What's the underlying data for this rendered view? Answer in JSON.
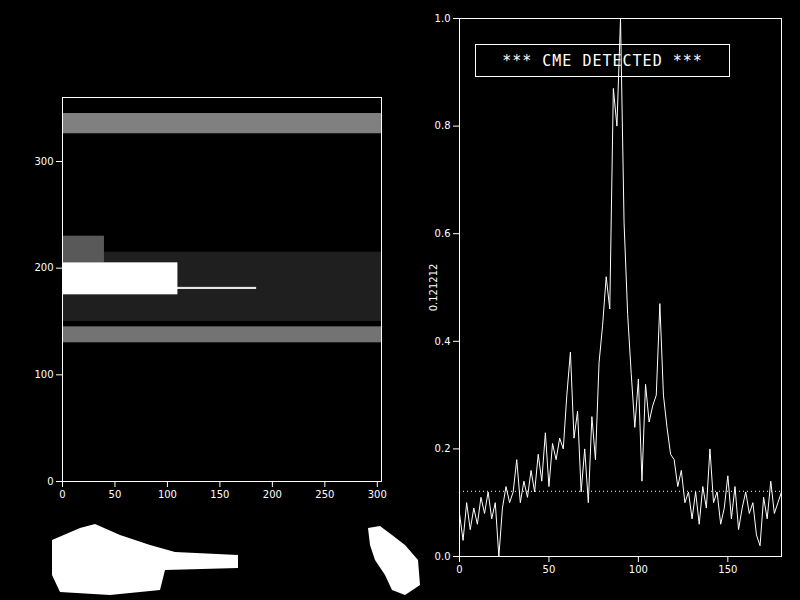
{
  "chart_data": [
    {
      "type": "image",
      "xlim": [
        0,
        304
      ],
      "ylim": [
        0,
        360
      ],
      "xticks": [
        0,
        50,
        100,
        150,
        200,
        250,
        300
      ],
      "yticks": [
        0,
        100,
        200,
        300
      ],
      "cells": [
        {
          "x1": 0,
          "x2": 304,
          "y1": 326,
          "y2": 345,
          "intensity": 0.5
        },
        {
          "x1": 0,
          "x2": 304,
          "y1": 130,
          "y2": 145,
          "intensity": 0.45
        },
        {
          "x1": 0,
          "x2": 304,
          "y1": 150,
          "y2": 215,
          "intensity": 0.12
        },
        {
          "x1": 0,
          "x2": 40,
          "y1": 205,
          "y2": 230,
          "intensity": 0.35
        },
        {
          "x1": 0,
          "x2": 185,
          "y1": 180,
          "y2": 182,
          "intensity": 0.9
        },
        {
          "x1": 0,
          "x2": 110,
          "y1": 175,
          "y2": 205,
          "intensity": 1.0
        }
      ]
    },
    {
      "type": "line",
      "annotation": "*** CME DETECTED ***",
      "ylabel": "0.121212",
      "color": "#ffffff",
      "threshold": {
        "value": 0.121212,
        "line_style": "dotted"
      },
      "xlim": [
        0,
        180
      ],
      "ylim": [
        0,
        1
      ],
      "xticks": [
        0,
        50,
        100,
        150
      ],
      "yticks": [
        {
          "value": 0,
          "label": "0.0"
        },
        0.2,
        0.4,
        0.6,
        0.8,
        {
          "value": 1,
          "label": "1.0"
        }
      ],
      "x": [
        0,
        2,
        4,
        6,
        8,
        10,
        12,
        14,
        16,
        18,
        20,
        22,
        24,
        26,
        28,
        30,
        32,
        34,
        36,
        38,
        40,
        42,
        44,
        46,
        48,
        50,
        52,
        54,
        56,
        58,
        60,
        62,
        64,
        66,
        68,
        70,
        72,
        74,
        76,
        78,
        80,
        82,
        84,
        86,
        88,
        90,
        92,
        94,
        96,
        98,
        100,
        102,
        104,
        106,
        108,
        110,
        112,
        114,
        116,
        118,
        120,
        122,
        124,
        126,
        128,
        130,
        132,
        134,
        136,
        138,
        140,
        142,
        144,
        146,
        148,
        150,
        152,
        154,
        156,
        158,
        160,
        162,
        164,
        166,
        168,
        170,
        172,
        174,
        176,
        178,
        180
      ],
      "values": [
        0.08,
        0.03,
        0.1,
        0.05,
        0.09,
        0.06,
        0.11,
        0.08,
        0.12,
        0.07,
        0.1,
        0.0,
        0.09,
        0.13,
        0.1,
        0.12,
        0.18,
        0.1,
        0.14,
        0.11,
        0.16,
        0.12,
        0.19,
        0.14,
        0.23,
        0.13,
        0.21,
        0.18,
        0.22,
        0.2,
        0.3,
        0.38,
        0.22,
        0.27,
        0.12,
        0.2,
        0.1,
        0.26,
        0.18,
        0.36,
        0.43,
        0.52,
        0.46,
        0.87,
        0.8,
        1.0,
        0.62,
        0.45,
        0.34,
        0.24,
        0.33,
        0.14,
        0.32,
        0.25,
        0.28,
        0.3,
        0.47,
        0.3,
        0.24,
        0.19,
        0.18,
        0.13,
        0.16,
        0.1,
        0.12,
        0.07,
        0.12,
        0.06,
        0.13,
        0.09,
        0.2,
        0.1,
        0.12,
        0.06,
        0.09,
        0.15,
        0.07,
        0.13,
        0.05,
        0.09,
        0.12,
        0.08,
        0.1,
        0.04,
        0.02,
        0.11,
        0.07,
        0.14,
        0.08,
        0.1,
        0.12
      ]
    }
  ]
}
